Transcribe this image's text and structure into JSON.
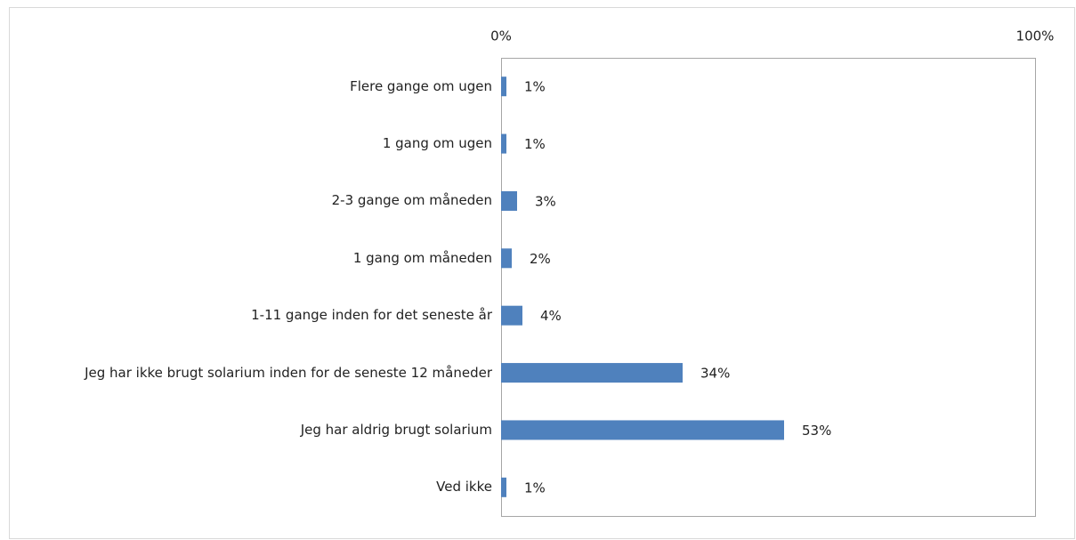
{
  "chart_data": {
    "type": "bar",
    "orientation": "horizontal",
    "categories": [
      "Flere gange om ugen",
      "1 gang om ugen",
      "2-3 gange om måneden",
      "1 gang om måneden",
      "1-11 gange inden for det seneste år",
      "Jeg har ikke brugt solarium inden for de seneste 12 måneder",
      "Jeg har aldrig brugt solarium",
      "Ved ikke"
    ],
    "values": [
      1,
      1,
      3,
      2,
      4,
      34,
      53,
      1
    ],
    "value_labels": [
      "1%",
      "1%",
      "3%",
      "2%",
      "4%",
      "34%",
      "53%",
      "1%"
    ],
    "color": "#4f81bd",
    "xlim": [
      0,
      100
    ],
    "xticks": [
      {
        "value": 0,
        "label": "0%"
      },
      {
        "value": 100,
        "label": "100%"
      }
    ],
    "grid": false
  }
}
